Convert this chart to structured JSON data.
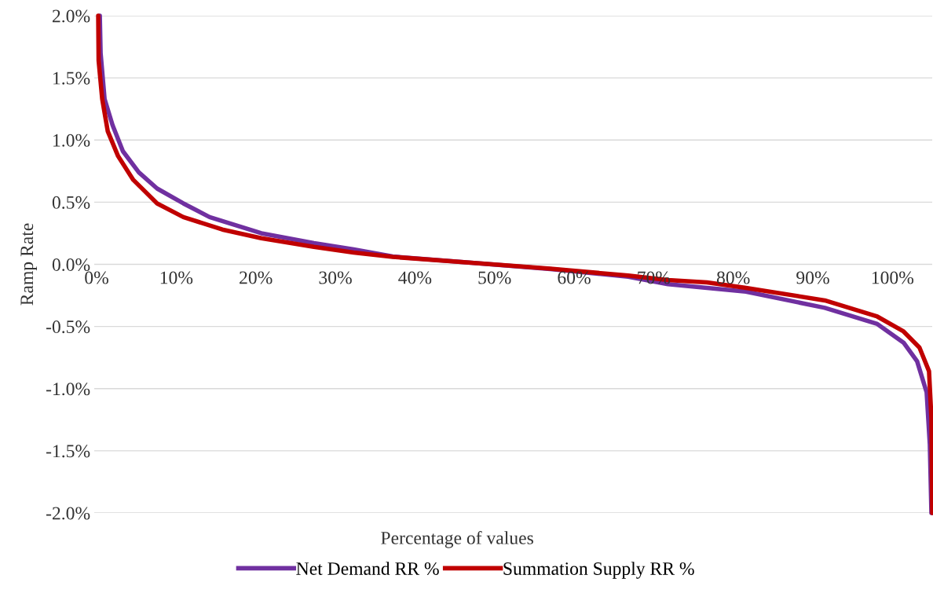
{
  "chart_data": {
    "type": "line",
    "xlabel": "Percentage of values",
    "ylabel": "Ramp Rate",
    "xlim": [
      -0.3,
      105
    ],
    "xticks": [
      {
        "value": 0,
        "label": "0%"
      },
      {
        "value": 10,
        "label": "10%"
      },
      {
        "value": 20,
        "label": "20%"
      },
      {
        "value": 30,
        "label": "30%"
      },
      {
        "value": 40,
        "label": "40%"
      },
      {
        "value": 50,
        "label": "50%"
      },
      {
        "value": 60,
        "label": "60%"
      },
      {
        "value": 70,
        "label": "70%"
      },
      {
        "value": 80,
        "label": "80%"
      },
      {
        "value": 90,
        "label": "90%"
      },
      {
        "value": 100,
        "label": "100%"
      }
    ],
    "ylim": [
      -2.0,
      2.0
    ],
    "yticks": [
      {
        "value": 2.0,
        "label": "2.0%"
      },
      {
        "value": 1.5,
        "label": "1.5%"
      },
      {
        "value": 1.0,
        "label": "1.0%"
      },
      {
        "value": 0.5,
        "label": "0.5%"
      },
      {
        "value": 0,
        "label": "0.0%"
      },
      {
        "value": -0.5,
        "label": "-0.5%"
      },
      {
        "value": -1.0,
        "label": "-1.0%"
      },
      {
        "value": -1.5,
        "label": "-1.5%"
      },
      {
        "value": -2.0,
        "label": "-2.0%"
      }
    ],
    "grid": "y",
    "legend": "bottom",
    "marker": "none",
    "line_style": "solid",
    "series": [
      {
        "name": "Net Demand RR %",
        "color": "#7030a0",
        "x": [
          0.4,
          0.5,
          1.0,
          2.0,
          3.3,
          5.3,
          7.6,
          10.9,
          14.2,
          20.7,
          27.3,
          32.3,
          37.2,
          47.1,
          57.0,
          66.8,
          71.8,
          76.7,
          81.6,
          91.5,
          98.1,
          101.4,
          103.1,
          104.3,
          104.7,
          104.9
        ],
        "values": [
          2.0,
          1.7,
          1.33,
          1.12,
          0.91,
          0.74,
          0.61,
          0.49,
          0.38,
          0.25,
          0.17,
          0.12,
          0.063,
          0.013,
          -0.038,
          -0.1,
          -0.16,
          -0.19,
          -0.22,
          -0.35,
          -0.48,
          -0.63,
          -0.78,
          -1.03,
          -1.45,
          -2.0
        ]
      },
      {
        "name": "Summation Supply RR %",
        "color": "#c00000",
        "x": [
          0.2,
          0.25,
          0.7,
          1.4,
          2.7,
          4.6,
          7.6,
          10.9,
          15.8,
          20.7,
          27.3,
          32.3,
          37.2,
          47.1,
          57.0,
          66.8,
          71.8,
          76.7,
          81.6,
          91.5,
          98.1,
          101.4,
          103.4,
          104.6,
          104.9,
          105.0
        ],
        "values": [
          2.0,
          1.64,
          1.33,
          1.07,
          0.87,
          0.68,
          0.49,
          0.38,
          0.28,
          0.21,
          0.14,
          0.095,
          0.06,
          0.013,
          -0.035,
          -0.09,
          -0.126,
          -0.145,
          -0.19,
          -0.29,
          -0.42,
          -0.54,
          -0.67,
          -0.86,
          -1.24,
          -2.0
        ]
      }
    ]
  }
}
